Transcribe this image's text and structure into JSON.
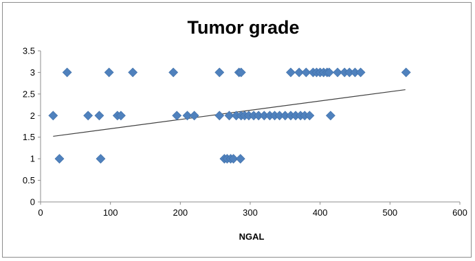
{
  "chart_data": {
    "type": "scatter",
    "title": "Tumor grade",
    "xlabel": "NGAL",
    "ylabel": "",
    "xlim": [
      0,
      600
    ],
    "ylim": [
      0,
      3.5
    ],
    "x_ticks": [
      "0",
      "100",
      "200",
      "300",
      "400",
      "500",
      "600"
    ],
    "y_ticks": [
      "0",
      "0.5",
      "1",
      "1.5",
      "2",
      "2.5",
      "3",
      "3.5"
    ],
    "grid": false,
    "legend": "none",
    "marker_color": "#4f81bd",
    "trendline_color": "#404040",
    "trendline": {
      "x": [
        18,
        522
      ],
      "y": [
        1.52,
        2.6
      ]
    },
    "series": [
      {
        "values": [
          [
            38,
            3
          ],
          [
            98,
            3
          ],
          [
            132,
            3
          ],
          [
            190,
            3
          ],
          [
            256,
            3
          ],
          [
            284,
            3
          ],
          [
            287,
            3
          ],
          [
            358,
            3
          ],
          [
            370,
            3
          ],
          [
            380,
            3
          ],
          [
            390,
            3
          ],
          [
            395,
            3
          ],
          [
            400,
            3
          ],
          [
            405,
            3
          ],
          [
            410,
            3
          ],
          [
            413,
            3
          ],
          [
            425,
            3
          ],
          [
            435,
            3
          ],
          [
            442,
            3
          ],
          [
            450,
            3
          ],
          [
            458,
            3
          ],
          [
            523,
            3
          ],
          [
            18,
            2
          ],
          [
            68,
            2
          ],
          [
            84,
            2
          ],
          [
            110,
            2
          ],
          [
            115,
            2
          ],
          [
            195,
            2
          ],
          [
            210,
            2
          ],
          [
            220,
            2
          ],
          [
            256,
            2
          ],
          [
            270,
            2
          ],
          [
            280,
            2
          ],
          [
            287,
            2
          ],
          [
            292,
            2
          ],
          [
            298,
            2
          ],
          [
            305,
            2
          ],
          [
            312,
            2
          ],
          [
            320,
            2
          ],
          [
            328,
            2
          ],
          [
            335,
            2
          ],
          [
            342,
            2
          ],
          [
            350,
            2
          ],
          [
            358,
            2
          ],
          [
            365,
            2
          ],
          [
            372,
            2
          ],
          [
            378,
            2
          ],
          [
            385,
            2
          ],
          [
            415,
            2
          ],
          [
            27,
            1
          ],
          [
            86,
            1
          ],
          [
            263,
            1
          ],
          [
            267,
            1
          ],
          [
            272,
            1
          ],
          [
            276,
            1
          ],
          [
            286,
            1
          ]
        ]
      }
    ]
  }
}
